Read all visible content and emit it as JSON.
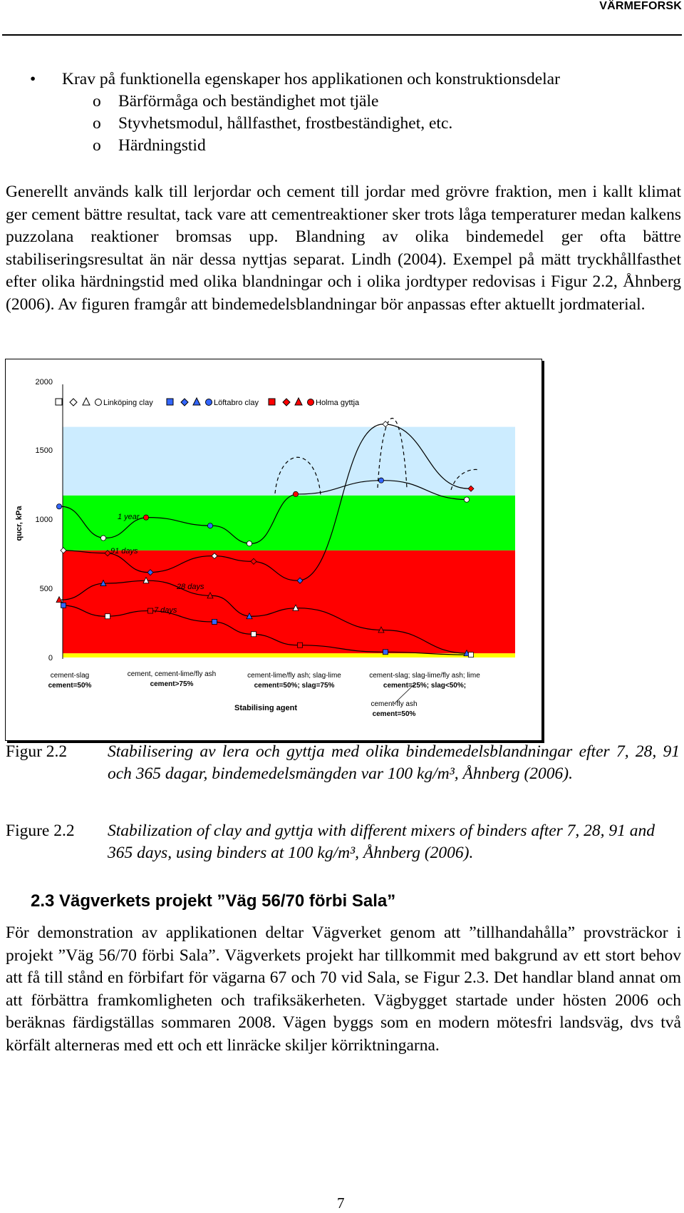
{
  "header": {
    "org": "VÄRMEFORSK"
  },
  "bullets": {
    "main": "Krav på funktionella egenskaper hos applikationen och konstruktionsdelar",
    "sub": [
      "Bärförmåga och beständighet mot tjäle",
      "Styvhetsmodul, hållfasthet, frostbeständighet, etc.",
      "Härdningstid"
    ],
    "bullet_char": "•",
    "sub_char": "o"
  },
  "paragraph1": "Generellt används kalk till lerjordar och cement till jordar med grövre fraktion, men i kallt klimat ger cement bättre resultat, tack vare att cementreaktioner sker trots låga temperaturer medan kalkens puzzolana reaktioner bromsas upp. Blandning av olika bindemedel ger ofta bättre stabiliseringsresultat än när dessa nyttjas separat. Lindh (2004). Exempel på mätt tryckhållfasthet efter olika härdningstid med olika blandningar och i olika jordtyper redovisas i Figur 2.2, Åhnberg (2006). Av figuren framgår att bindemedelsblandningar bör anpassas efter aktuellt jordmaterial.",
  "chart": {
    "ylabel": "qucr, kPa",
    "yticks": [
      "0",
      "500",
      "1000",
      "1500",
      "2000"
    ],
    "legend": [
      "Linköping clay",
      "Löftabro clay",
      "Holma gyttja"
    ],
    "curve_labels": [
      "1 year",
      "91 days",
      "28 days",
      "7 days"
    ],
    "group_labels": [
      {
        "line1": "cement-slag",
        "line2": "cement=50%"
      },
      {
        "line1": "cement, cement-lime/fly ash",
        "line2": "cement>75%"
      },
      {
        "line1": "cement-lime/fly ash; slag-lime",
        "line2": "cement=50%; slag=75%"
      },
      {
        "line1": "cement-slag; slag-lime/fly ash; lime",
        "line2": "cement=25%; slag<50%;"
      }
    ],
    "extra_label": {
      "line1": "cement-fly ash",
      "line2": "cement=50%"
    },
    "xlabel": "Stabilising agent",
    "colors": {
      "green": "#00ff00",
      "red": "#ff0000",
      "yellow": "#ffff00",
      "sky": "#ccecff",
      "blue": "#3366ff",
      "holma": "#ff0000"
    }
  },
  "chart_data": {
    "type": "scatter",
    "ylabel": "qucr, kPa",
    "xlabel": "Stabilising agent",
    "ylim": [
      0,
      2000
    ],
    "legend_placement": "top",
    "series": [
      {
        "name": "1 year",
        "values": [
          1100,
          870,
          1020,
          960,
          830,
          1190,
          1290,
          1150
        ]
      },
      {
        "name": "91 days",
        "values": [
          780,
          760,
          620,
          740,
          700,
          560,
          1700,
          1230
        ]
      },
      {
        "name": "28 days",
        "values": [
          420,
          540,
          560,
          450,
          300,
          360,
          200,
          30
        ]
      },
      {
        "name": "7 days",
        "values": [
          380,
          300,
          340,
          260,
          170,
          90,
          40,
          20
        ]
      }
    ],
    "bands": [
      {
        "from": 0,
        "to": 30,
        "color": "#ffff00"
      },
      {
        "from": 30,
        "to": 780,
        "color": "#ff0000"
      },
      {
        "from": 780,
        "to": 1180,
        "color": "#00ff00"
      },
      {
        "from": 1180,
        "to": 1680,
        "color": "#ccecff"
      }
    ]
  },
  "captions": [
    {
      "label": "Figur 2.2",
      "text": "Stabilisering av lera och gyttja med olika bindemedelsblandningar efter 7, 28, 91 och 365 dagar, bindemedelsmängden var 100 kg/m³, Åhnberg (2006)."
    },
    {
      "label": "Figure 2.2",
      "text": "Stabilization of clay and gyttja with different mixers of binders after 7, 28, 91 and 365 days, using binders at 100 kg/m³, Åhnberg (2006)."
    }
  ],
  "section_heading": "2.3 Vägverkets projekt ”Väg 56/70 förbi Sala”",
  "paragraph2": "För demonstration av applikationen deltar Vägverket genom att ”tillhandahålla” provsträckor i projekt ”Väg 56/70 förbi Sala”. Vägverkets projekt har tillkommit med bakgrund av ett stort behov att få till stånd en förbifart för vägarna 67 och 70 vid Sala, se Figur 2.3. Det handlar bland annat om att förbättra framkomligheten och trafiksäkerheten. Vägbygget startade under hösten 2006 och beräknas färdigställas sommaren 2008. Vägen byggs som en modern mötesfri landsväg, dvs två körfält alterneras med ett och ett linräcke skiljer körriktningarna.",
  "page_number": "7"
}
